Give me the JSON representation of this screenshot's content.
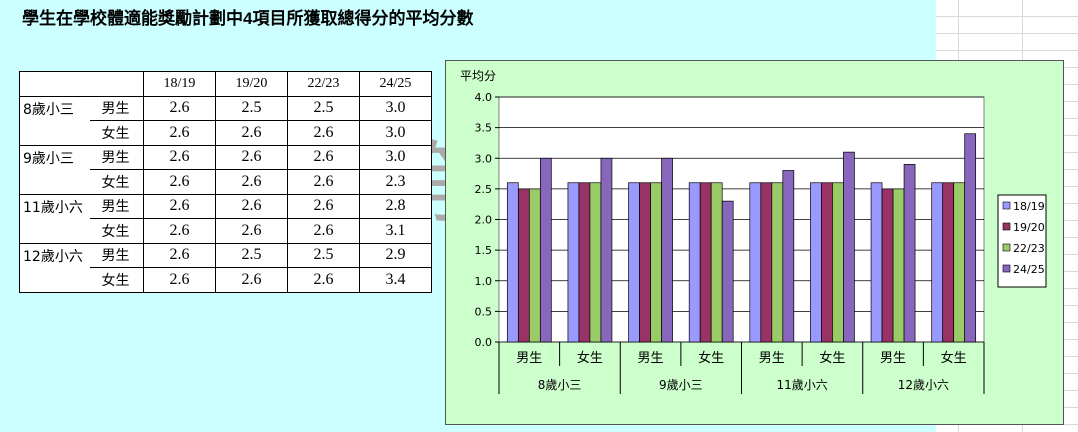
{
  "title": "學生在學校體適能獎勵計劃中4項目所獲取總得分的平均分數",
  "table": {
    "years": [
      "18/19",
      "19/20",
      "22/23",
      "24/25"
    ],
    "rows": [
      {
        "group": "8歲小三",
        "gender": "男生",
        "values": [
          "2.6",
          "2.5",
          "2.5",
          "3.0"
        ]
      },
      {
        "group": "",
        "gender": "女生",
        "values": [
          "2.6",
          "2.6",
          "2.6",
          "3.0"
        ]
      },
      {
        "group": "9歲小三",
        "gender": "男生",
        "values": [
          "2.6",
          "2.6",
          "2.6",
          "3.0"
        ]
      },
      {
        "group": "",
        "gender": "女生",
        "values": [
          "2.6",
          "2.6",
          "2.6",
          "2.3"
        ]
      },
      {
        "group": "11歲小六",
        "gender": "男生",
        "values": [
          "2.6",
          "2.6",
          "2.6",
          "2.8"
        ]
      },
      {
        "group": "",
        "gender": "女生",
        "values": [
          "2.6",
          "2.6",
          "2.6",
          "3.1"
        ]
      },
      {
        "group": "12歲小六",
        "gender": "男生",
        "values": [
          "2.6",
          "2.5",
          "2.5",
          "2.9"
        ]
      },
      {
        "group": "",
        "gender": "女生",
        "values": [
          "2.6",
          "2.6",
          "2.6",
          "3.4"
        ]
      }
    ]
  },
  "watermark": "第",
  "chart_data": {
    "type": "bar",
    "ylabel": "平均分",
    "ylim": [
      0,
      4.0
    ],
    "yticks": [
      "0.0",
      "0.5",
      "1.0",
      "1.5",
      "2.0",
      "2.5",
      "3.0",
      "3.5",
      "4.0"
    ],
    "categories": [
      "男生",
      "女生",
      "男生",
      "女生",
      "男生",
      "女生",
      "男生",
      "女生"
    ],
    "groups": [
      "8歲小三",
      "9歲小三",
      "11歲小六",
      "12歲小六"
    ],
    "series": [
      {
        "name": "18/19",
        "color": "#9999ff",
        "values": [
          2.6,
          2.6,
          2.6,
          2.6,
          2.6,
          2.6,
          2.6,
          2.6
        ]
      },
      {
        "name": "19/20",
        "color": "#993366",
        "values": [
          2.5,
          2.6,
          2.6,
          2.6,
          2.6,
          2.6,
          2.5,
          2.6
        ]
      },
      {
        "name": "22/23",
        "color": "#99cc66",
        "values": [
          2.5,
          2.6,
          2.6,
          2.6,
          2.6,
          2.6,
          2.5,
          2.6
        ]
      },
      {
        "name": "24/25",
        "color": "#8866bb",
        "values": [
          3.0,
          3.0,
          3.0,
          2.3,
          2.8,
          3.1,
          2.9,
          3.4
        ]
      }
    ],
    "legend_position": "right",
    "grid": true,
    "background": "#ccffcc"
  }
}
